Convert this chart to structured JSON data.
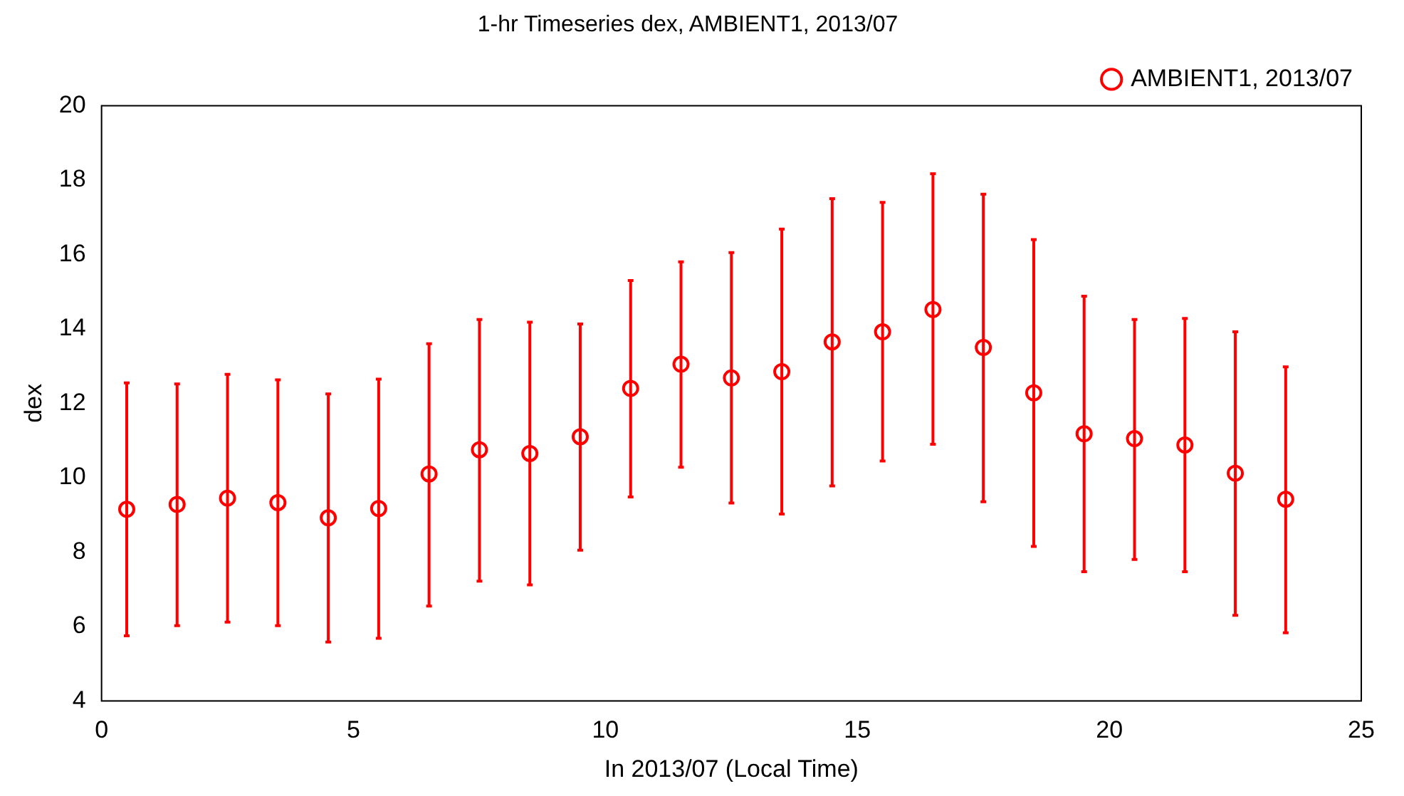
{
  "chart_data": {
    "type": "scatter",
    "title": "1-hr Timeseries dex, AMBIENT1, 2013/07",
    "xlabel": "In 2013/07 (Local Time)",
    "ylabel": "dex",
    "x": [
      0.5,
      1.5,
      2.5,
      3.5,
      4.5,
      5.5,
      6.5,
      7.5,
      8.5,
      9.5,
      10.5,
      11.5,
      12.5,
      13.5,
      14.5,
      15.5,
      16.5,
      17.5,
      18.5,
      19.5,
      20.5,
      21.5,
      22.5,
      23.5
    ],
    "series": [
      {
        "name": "AMBIENT1, 2013/07",
        "color": "#ff0000",
        "values": [
          9.15,
          9.28,
          9.45,
          9.33,
          8.92,
          9.17,
          10.1,
          10.75,
          10.65,
          11.1,
          12.4,
          13.05,
          12.68,
          12.85,
          13.65,
          13.92,
          14.52,
          13.5,
          12.28,
          11.18,
          11.05,
          10.88,
          10.12,
          9.42
        ],
        "errors": [
          [
            5.75,
            12.55
          ],
          [
            6.02,
            12.52
          ],
          [
            6.12,
            12.78
          ],
          [
            6.02,
            12.63
          ],
          [
            5.58,
            12.25
          ],
          [
            5.68,
            12.65
          ],
          [
            6.55,
            13.6
          ],
          [
            7.22,
            14.25
          ],
          [
            7.12,
            14.18
          ],
          [
            8.05,
            14.13
          ],
          [
            9.48,
            15.3
          ],
          [
            10.28,
            15.8
          ],
          [
            9.32,
            16.05
          ],
          [
            9.02,
            16.68
          ],
          [
            9.78,
            17.5
          ],
          [
            10.45,
            17.4
          ],
          [
            10.9,
            18.17
          ],
          [
            9.35,
            17.62
          ],
          [
            8.15,
            16.4
          ],
          [
            7.47,
            14.88
          ],
          [
            7.8,
            14.25
          ],
          [
            7.47,
            14.28
          ],
          [
            6.3,
            13.92
          ],
          [
            5.83,
            12.98
          ]
        ]
      }
    ],
    "xlim": [
      0,
      25
    ],
    "xticks": [
      0,
      5,
      10,
      15,
      20,
      25
    ],
    "ylim": [
      4,
      20
    ],
    "yticks": [
      4,
      6,
      8,
      10,
      12,
      14,
      16,
      18,
      20
    ],
    "grid": false,
    "legend": "top right",
    "marker": "circle"
  }
}
